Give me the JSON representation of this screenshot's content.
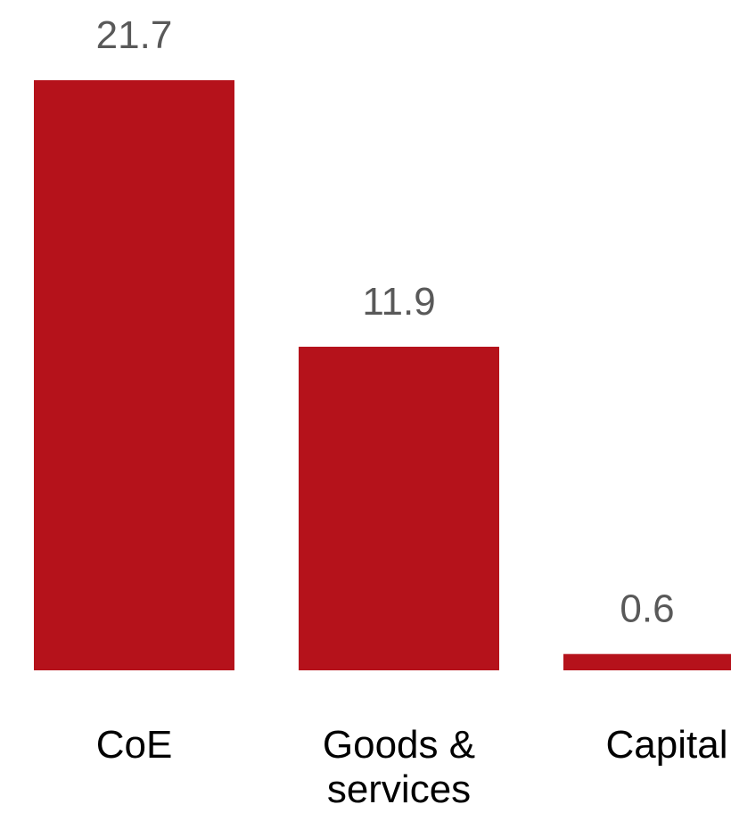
{
  "chart_data": {
    "type": "bar",
    "categories": [
      "CoE",
      "Goods & services",
      "Capital"
    ],
    "category_lines": [
      [
        "CoE"
      ],
      [
        "Goods &",
        "services"
      ],
      [
        "Capital"
      ]
    ],
    "values": [
      21.7,
      11.9,
      0.6
    ],
    "data_labels": [
      "21.7",
      "11.9",
      "0.6"
    ],
    "title": "",
    "xlabel": "",
    "ylabel": "",
    "ylim": [
      0,
      21.7
    ],
    "grid": false,
    "legend": "none",
    "colors": {
      "bar": "#b5121b",
      "data_label": "#595959",
      "category_label": "#000000",
      "background": "#ffffff"
    }
  }
}
